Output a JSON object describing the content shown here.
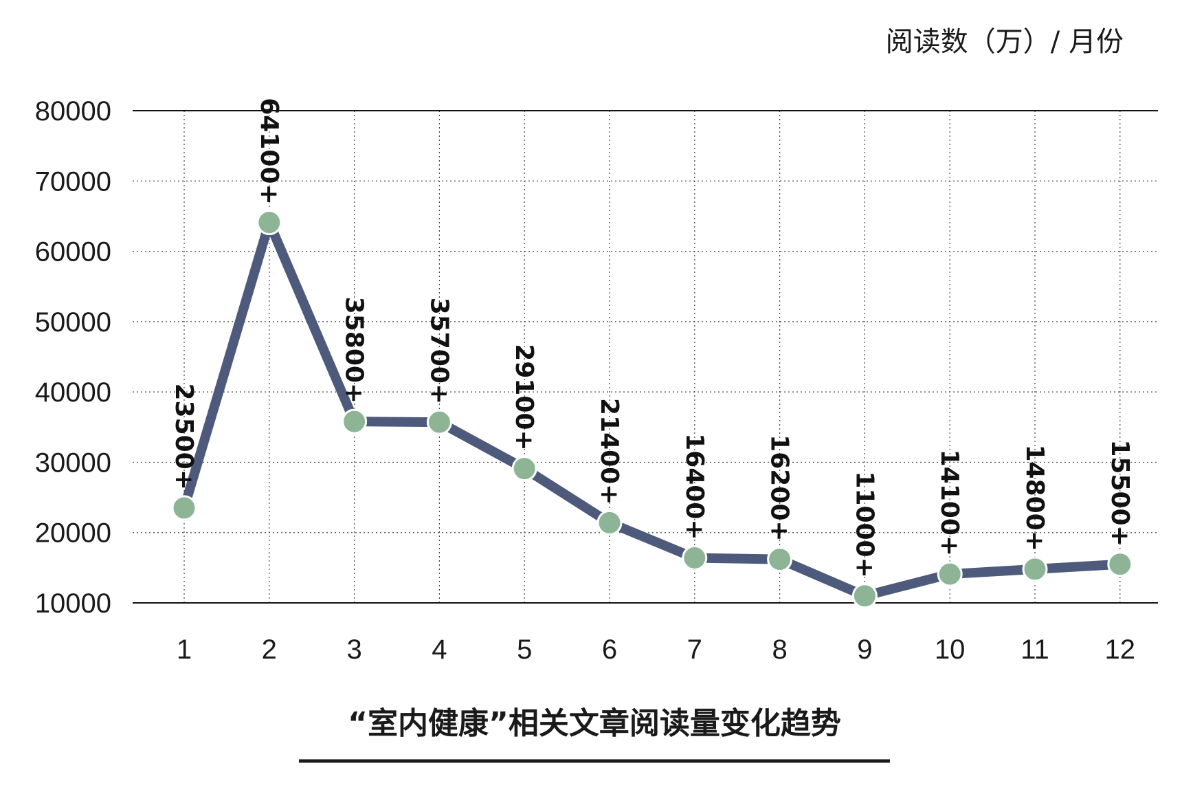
{
  "chart_data": {
    "type": "line",
    "title": "“室内健康”相关文章阅读量变化趋势",
    "unit_label": "阅读数（万）/ 月份",
    "categories": [
      "1",
      "2",
      "3",
      "4",
      "5",
      "6",
      "7",
      "8",
      "9",
      "10",
      "11",
      "12"
    ],
    "values": [
      23500,
      64100,
      35800,
      35700,
      29100,
      21400,
      16400,
      16200,
      11000,
      14100,
      14800,
      15500
    ],
    "data_labels": [
      "23500+",
      "64100+",
      "35800+",
      "35700+",
      "29100+",
      "21400+",
      "16400+",
      "16200+",
      "11000+",
      "14100+",
      "14800+",
      "15500+"
    ],
    "y_ticks": [
      "80000",
      "70000",
      "60000",
      "50000",
      "40000",
      "30000",
      "20000",
      "10000"
    ],
    "ylim": [
      10000,
      80000
    ],
    "grid": true,
    "colors": {
      "line": "#4e5a7c",
      "marker": "#8db595",
      "grid": "#444444",
      "text": "#1a1a1a"
    }
  }
}
